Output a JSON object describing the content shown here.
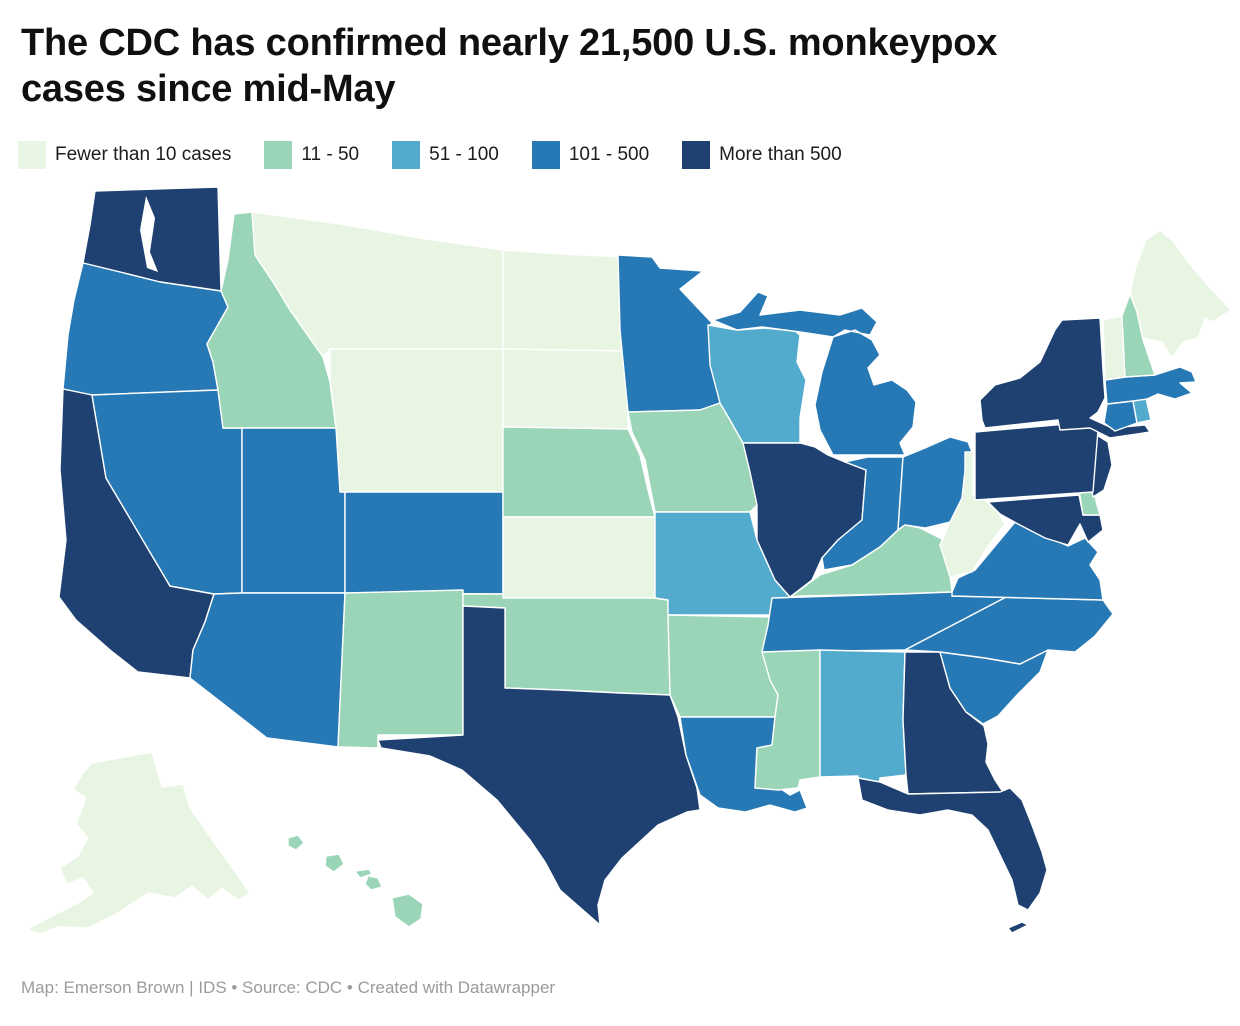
{
  "header": {
    "title": "The CDC has confirmed nearly 21,500 U.S. monkeypox cases since mid-May"
  },
  "legend": {
    "items": [
      {
        "key": "lt10",
        "label": "Fewer than 10 cases",
        "color": "#e8f5e2"
      },
      {
        "key": "c11_50",
        "label": "11 - 50",
        "color": "#9bd5b8"
      },
      {
        "key": "c51_100",
        "label": "51 - 100",
        "color": "#52aacc"
      },
      {
        "key": "c101_500",
        "label": "101 - 500",
        "color": "#2679b5"
      },
      {
        "key": "gt500",
        "label": "More than 500",
        "color": "#1e4171"
      }
    ]
  },
  "map": {
    "state_border_color": "#ffffff",
    "states": [
      {
        "code": "WA",
        "name": "Washington",
        "category": "gt500"
      },
      {
        "code": "OR",
        "name": "Oregon",
        "category": "c101_500"
      },
      {
        "code": "CA",
        "name": "California",
        "category": "gt500"
      },
      {
        "code": "NV",
        "name": "Nevada",
        "category": "c101_500"
      },
      {
        "code": "ID",
        "name": "Idaho",
        "category": "c11_50"
      },
      {
        "code": "MT",
        "name": "Montana",
        "category": "lt10"
      },
      {
        "code": "WY",
        "name": "Wyoming",
        "category": "lt10"
      },
      {
        "code": "UT",
        "name": "Utah",
        "category": "c101_500"
      },
      {
        "code": "CO",
        "name": "Colorado",
        "category": "c101_500"
      },
      {
        "code": "AZ",
        "name": "Arizona",
        "category": "c101_500"
      },
      {
        "code": "NM",
        "name": "New Mexico",
        "category": "c11_50"
      },
      {
        "code": "ND",
        "name": "North Dakota",
        "category": "lt10"
      },
      {
        "code": "SD",
        "name": "South Dakota",
        "category": "lt10"
      },
      {
        "code": "NE",
        "name": "Nebraska",
        "category": "c11_50"
      },
      {
        "code": "KS",
        "name": "Kansas",
        "category": "lt10"
      },
      {
        "code": "OK",
        "name": "Oklahoma",
        "category": "c11_50"
      },
      {
        "code": "TX",
        "name": "Texas",
        "category": "gt500"
      },
      {
        "code": "MN",
        "name": "Minnesota",
        "category": "c101_500"
      },
      {
        "code": "IA",
        "name": "Iowa",
        "category": "c11_50"
      },
      {
        "code": "MO",
        "name": "Missouri",
        "category": "c51_100"
      },
      {
        "code": "AR",
        "name": "Arkansas",
        "category": "c11_50"
      },
      {
        "code": "LA",
        "name": "Louisiana",
        "category": "c101_500"
      },
      {
        "code": "WI",
        "name": "Wisconsin",
        "category": "c51_100"
      },
      {
        "code": "IL",
        "name": "Illinois",
        "category": "gt500"
      },
      {
        "code": "MI",
        "name": "Michigan",
        "category": "c101_500"
      },
      {
        "code": "IN",
        "name": "Indiana",
        "category": "c101_500"
      },
      {
        "code": "OH",
        "name": "Ohio",
        "category": "c101_500"
      },
      {
        "code": "KY",
        "name": "Kentucky",
        "category": "c11_50"
      },
      {
        "code": "TN",
        "name": "Tennessee",
        "category": "c101_500"
      },
      {
        "code": "MS",
        "name": "Mississippi",
        "category": "c11_50"
      },
      {
        "code": "AL",
        "name": "Alabama",
        "category": "c51_100"
      },
      {
        "code": "GA",
        "name": "Georgia",
        "category": "gt500"
      },
      {
        "code": "FL",
        "name": "Florida",
        "category": "gt500"
      },
      {
        "code": "SC",
        "name": "South Carolina",
        "category": "c101_500"
      },
      {
        "code": "NC",
        "name": "North Carolina",
        "category": "c101_500"
      },
      {
        "code": "VA",
        "name": "Virginia",
        "category": "c101_500"
      },
      {
        "code": "WV",
        "name": "West Virginia",
        "category": "lt10"
      },
      {
        "code": "MD",
        "name": "Maryland",
        "category": "gt500"
      },
      {
        "code": "DE",
        "name": "Delaware",
        "category": "c11_50"
      },
      {
        "code": "NJ",
        "name": "New Jersey",
        "category": "gt500"
      },
      {
        "code": "PA",
        "name": "Pennsylvania",
        "category": "gt500"
      },
      {
        "code": "NY",
        "name": "New York",
        "category": "gt500"
      },
      {
        "code": "CT",
        "name": "Connecticut",
        "category": "c101_500"
      },
      {
        "code": "RI",
        "name": "Rhode Island",
        "category": "c51_100"
      },
      {
        "code": "MA",
        "name": "Massachusetts",
        "category": "c101_500"
      },
      {
        "code": "VT",
        "name": "Vermont",
        "category": "lt10"
      },
      {
        "code": "NH",
        "name": "New Hampshire",
        "category": "c11_50"
      },
      {
        "code": "ME",
        "name": "Maine",
        "category": "lt10"
      },
      {
        "code": "AK",
        "name": "Alaska",
        "category": "lt10"
      },
      {
        "code": "HI",
        "name": "Hawaii",
        "category": "c11_50"
      }
    ]
  },
  "footer": {
    "text": "Map: Emerson Brown | IDS • Source: CDC • Created with Datawrapper"
  }
}
